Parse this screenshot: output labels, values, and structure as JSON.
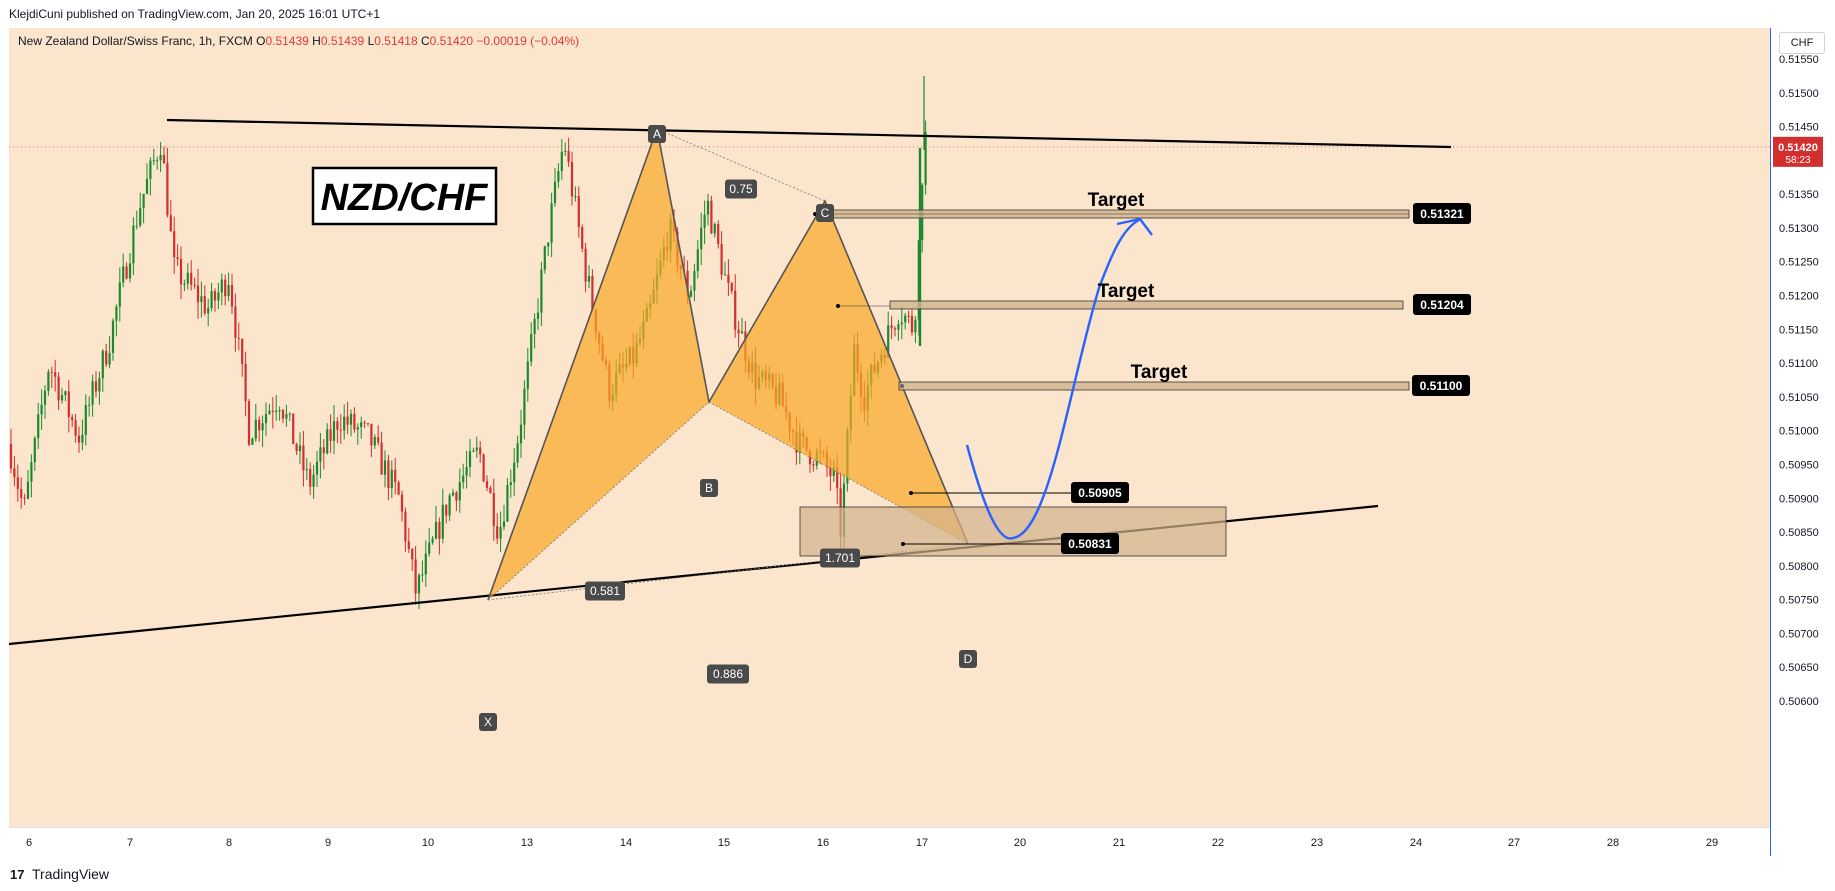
{
  "header": {
    "published_by": "KlejdiCuni published on TradingView.com, Jan 20, 2025 16:01 UTC+1"
  },
  "legend": {
    "symbol": "New Zealand Dollar/Swiss Franc, 1h, FXCM",
    "o_label": "O",
    "o": "0.51439",
    "h_label": "H",
    "h": "0.51439",
    "l_label": "L",
    "l": "0.51418",
    "c_label": "C",
    "c": "0.51420",
    "change": "−0.00019 (−0.04%)"
  },
  "price_scale": {
    "currency": "CHF",
    "current_price": "0.51420",
    "countdown": "58:23"
  },
  "brand": {
    "logo_mark": "17",
    "name": "TradingView"
  },
  "colors": {
    "bg": "#fbe5cd",
    "up": "#1b8a2f",
    "down": "#d32f2f",
    "pattern": "#f9a825",
    "curve": "#2962ff",
    "zone": "#d2b48c"
  },
  "chart_data": {
    "type": "candlestick",
    "title": "NZD/CHF",
    "symbol": "NZDCHF",
    "interval": "1h",
    "ylim": [
      0.5058,
      0.5158
    ],
    "y_ticks": [
      "0.51550",
      "0.51500",
      "0.51450",
      "0.51400",
      "0.51350",
      "0.51300",
      "0.51250",
      "0.51200",
      "0.51150",
      "0.51100",
      "0.51050",
      "0.51000",
      "0.50950",
      "0.50900",
      "0.50850",
      "0.50800",
      "0.50750",
      "0.50700",
      "0.50650",
      "0.50600"
    ],
    "x_ticks": [
      "6",
      "7",
      "8",
      "9",
      "10",
      "13",
      "14",
      "15",
      "16",
      "17",
      "20",
      "21",
      "22",
      "23",
      "24",
      "27",
      "28",
      "29"
    ],
    "last_price": 0.5142,
    "harmonic_points": [
      {
        "label": "X",
        "price": 0.50748
      },
      {
        "label": "A",
        "price": 0.51448
      },
      {
        "label": "B",
        "price": 0.5104
      },
      {
        "label": "C",
        "price": 0.51345
      },
      {
        "label": "D",
        "price": 0.50833
      }
    ],
    "ratios": [
      "0.75",
      "0.581",
      "1.701",
      "0.886"
    ],
    "targets": [
      {
        "label": "Target",
        "price": "0.51321"
      },
      {
        "label": "Target",
        "price": "0.51204"
      },
      {
        "label": "Target",
        "price": "0.51100"
      }
    ],
    "levels": [
      "0.50905",
      "0.50831"
    ],
    "zone": {
      "low": 0.50825,
      "high": 0.50885
    },
    "trendlines": [
      {
        "name": "resistance",
        "p1": 0.5146,
        "p2": 0.51415
      },
      {
        "name": "support",
        "p1": 0.50685,
        "p2": 0.50885
      }
    ]
  }
}
